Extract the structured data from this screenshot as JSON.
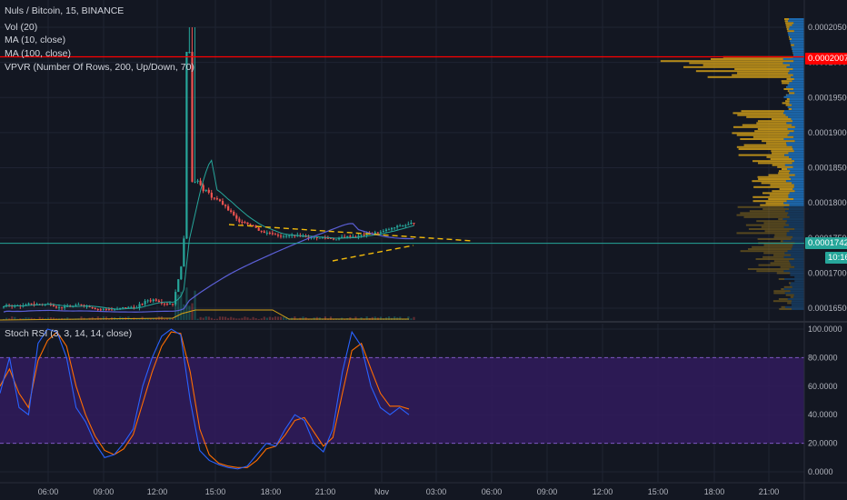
{
  "legend": {
    "symbol": "Nuls / Bitcoin, 15, BINANCE",
    "vol": "Vol (20)",
    "ma10": "MA (10, close)",
    "ma100": "MA (100, close)",
    "vpvr": "VPVR (Number Of Rows, 200, Up/Down, 70)",
    "rsi": "Stoch RSI (3, 3, 14, 14, close)"
  },
  "price_axis": {
    "ticks": [
      "0.00020500",
      "0.00020000",
      "0.00019500",
      "0.00019000",
      "0.00018500",
      "0.00018000",
      "0.00017500",
      "0.00017000",
      "0.00016500"
    ],
    "tick_values": [
      0.000205,
      0.0002,
      0.000195,
      0.00019,
      0.000185,
      0.00018,
      0.000175,
      0.00017,
      0.000165
    ],
    "line_price_label": "0.00020079",
    "last_price_label": "0.00017424",
    "countdown": "10:16",
    "line_color": "#ff0000",
    "last_color": "#26a69a"
  },
  "rsi_axis": {
    "ticks": [
      "100.0000",
      "80.0000",
      "60.0000",
      "40.0000",
      "20.0000",
      "0.0000"
    ],
    "tick_values": [
      100,
      80,
      60,
      40,
      20,
      0
    ],
    "band_upper": 80,
    "band_lower": 20,
    "band_color": "#311b5d"
  },
  "time_axis": [
    "06:00",
    "09:00",
    "12:00",
    "15:00",
    "18:00",
    "21:00",
    "Nov",
    "03:00",
    "06:00",
    "09:00",
    "12:00",
    "15:00",
    "18:00",
    "21:00"
  ],
  "colors": {
    "up": "#26a69a",
    "down": "#ef5350",
    "ma10": "#26a69a",
    "ma100": "#5b5fd6",
    "k": "#2962ff",
    "d": "#ff6d00",
    "trend": "#f0b90b",
    "vpvr_up": "#1e78c8",
    "vpvr_down": "#d4a017"
  },
  "chart_data": {
    "type": "candlestick",
    "price_line": 0.00020079,
    "last_price": 0.00017424,
    "stoch_k": [
      55,
      80,
      45,
      40,
      90,
      100,
      98,
      80,
      45,
      35,
      20,
      10,
      12,
      20,
      30,
      60,
      80,
      95,
      100,
      96,
      50,
      15,
      8,
      5,
      3,
      2,
      4,
      12,
      20,
      18,
      30,
      40,
      36,
      20,
      14,
      30,
      70,
      98,
      88,
      60,
      45,
      40,
      45,
      40
    ],
    "stoch_d": [
      60,
      72,
      55,
      45,
      78,
      92,
      98,
      88,
      60,
      40,
      25,
      15,
      12,
      16,
      26,
      48,
      70,
      88,
      98,
      97,
      70,
      30,
      12,
      6,
      4,
      3,
      3,
      8,
      16,
      18,
      26,
      36,
      38,
      28,
      18,
      24,
      55,
      85,
      90,
      72,
      55,
      46,
      46,
      44
    ]
  }
}
